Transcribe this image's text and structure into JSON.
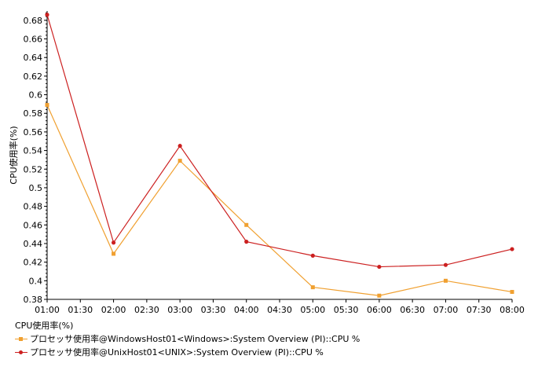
{
  "chart_data": {
    "type": "line",
    "ylabel": "CPU使用率(%)",
    "xlabel": "",
    "x": [
      "01:00",
      "02:00",
      "03:00",
      "04:00",
      "05:00",
      "06:00",
      "07:00",
      "08:00"
    ],
    "x_ticks": [
      "01:00",
      "01:30",
      "02:00",
      "02:30",
      "03:00",
      "03:30",
      "04:00",
      "04:30",
      "05:00",
      "05:30",
      "06:00",
      "06:30",
      "07:00",
      "07:30",
      "08:00"
    ],
    "ylim": [
      0.38,
      0.69
    ],
    "y_ticks": [
      "0.38",
      "0.4",
      "0.42",
      "0.44",
      "0.46",
      "0.48",
      "0.5",
      "0.52",
      "0.54",
      "0.56",
      "0.58",
      "0.6",
      "0.62",
      "0.64",
      "0.66",
      "0.68"
    ],
    "series": [
      {
        "name": "プロセッサ使用率@WindowsHost01<Windows>:System Overview (PI)::CPU %",
        "color": "#f0a030",
        "marker": "square",
        "values": [
          0.589,
          0.429,
          0.529,
          0.46,
          0.393,
          0.384,
          0.4,
          0.388
        ]
      },
      {
        "name": "プロセッサ使用率@UnixHost01<UNIX>:System Overview (PI)::CPU %",
        "color": "#cc2020",
        "marker": "circle",
        "values": [
          0.686,
          0.441,
          0.545,
          0.442,
          0.427,
          0.415,
          0.417,
          0.434
        ]
      }
    ],
    "legend": {
      "title": "CPU使用率(%)",
      "position": "bottom-left"
    },
    "grid": false
  }
}
